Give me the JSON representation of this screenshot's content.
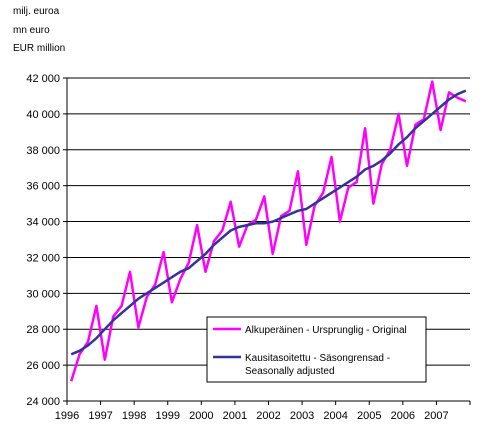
{
  "units": [
    "milj. euroa",
    "mn euro",
    "EUR million"
  ],
  "colors": {
    "original": "#ff00ff",
    "adjusted": "#333399",
    "axis": "#000000",
    "grid": "#000000"
  },
  "chart_data": {
    "type": "line",
    "title": "",
    "xlabel": "",
    "ylabel": "",
    "ylim": [
      24000,
      42000
    ],
    "yticks": [
      24000,
      26000,
      28000,
      30000,
      32000,
      34000,
      36000,
      38000,
      40000,
      42000
    ],
    "ytick_labels": [
      "24 000",
      "26 000",
      "28 000",
      "30 000",
      "32 000",
      "34 000",
      "36 000",
      "38 000",
      "40 000",
      "42 000"
    ],
    "xticks": [
      "1996",
      "1997",
      "1998",
      "1999",
      "2000",
      "2001",
      "2002",
      "2003",
      "2004",
      "2005",
      "2006",
      "2007"
    ],
    "x_quarters": [
      "1996Q1",
      "1996Q2",
      "1996Q3",
      "1996Q4",
      "1997Q1",
      "1997Q2",
      "1997Q3",
      "1997Q4",
      "1998Q1",
      "1998Q2",
      "1998Q3",
      "1998Q4",
      "1999Q1",
      "1999Q2",
      "1999Q3",
      "1999Q4",
      "2000Q1",
      "2000Q2",
      "2000Q3",
      "2000Q4",
      "2001Q1",
      "2001Q2",
      "2001Q3",
      "2001Q4",
      "2002Q1",
      "2002Q2",
      "2002Q3",
      "2002Q4",
      "2003Q1",
      "2003Q2",
      "2003Q3",
      "2003Q4",
      "2004Q1",
      "2004Q2",
      "2004Q3",
      "2004Q4",
      "2005Q1",
      "2005Q2",
      "2005Q3",
      "2005Q4",
      "2006Q1",
      "2006Q2",
      "2006Q3",
      "2006Q4",
      "2007Q1",
      "2007Q2",
      "2007Q3",
      "2007Q4"
    ],
    "grid": "horizontal",
    "legend_position": "bottom-right",
    "series": [
      {
        "name": "Alkuperäinen - Ursprunglig - Original",
        "color": "#ff00ff",
        "values": [
          25100,
          26600,
          27300,
          29300,
          26300,
          28700,
          29300,
          31200,
          28100,
          29800,
          30500,
          32300,
          29500,
          30800,
          31700,
          33800,
          31200,
          32900,
          33500,
          35100,
          32600,
          33800,
          34100,
          35400,
          32200,
          34300,
          34600,
          36800,
          32700,
          34900,
          35600,
          37600,
          34000,
          35900,
          36200,
          39200,
          35000,
          37200,
          38000,
          40000,
          37100,
          39400,
          39700,
          41800,
          39100,
          41200,
          40900,
          40700
        ]
      },
      {
        "name": "Kausitasoitettu - Säsongrensad - Seasonally adjusted",
        "color": "#333399",
        "values": [
          26600,
          26800,
          27100,
          27500,
          28000,
          28500,
          28900,
          29300,
          29700,
          30000,
          30300,
          30600,
          30900,
          31200,
          31400,
          31800,
          32200,
          32700,
          33100,
          33500,
          33700,
          33800,
          33900,
          33900,
          34000,
          34200,
          34400,
          34600,
          34700,
          35000,
          35300,
          35600,
          35900,
          36200,
          36500,
          36900,
          37100,
          37400,
          37800,
          38300,
          38700,
          39200,
          39600,
          40000,
          40400,
          40800,
          41100,
          41300
        ]
      }
    ]
  }
}
